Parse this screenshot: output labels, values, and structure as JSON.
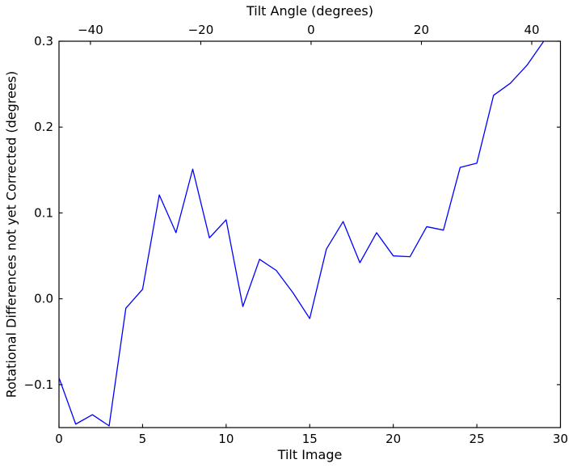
{
  "chart_data": {
    "type": "line",
    "title_top": "Tilt Angle (degrees)",
    "xlabel": "Tilt Image",
    "ylabel": "Rotational Differences not yet Corrected (degrees)",
    "x": [
      0,
      1,
      2,
      3,
      4,
      5,
      6,
      7,
      8,
      9,
      10,
      11,
      12,
      13,
      14,
      15,
      16,
      17,
      18,
      19,
      20,
      21,
      22,
      23,
      24,
      25,
      26,
      27,
      28,
      29
    ],
    "y": [
      -0.092,
      -0.146,
      -0.135,
      -0.148,
      -0.011,
      0.011,
      0.121,
      0.077,
      0.151,
      0.071,
      0.092,
      -0.009,
      0.046,
      0.033,
      0.007,
      -0.023,
      0.058,
      0.09,
      0.042,
      0.077,
      0.05,
      0.049,
      0.084,
      0.08,
      0.153,
      0.158,
      0.237,
      0.251,
      0.272,
      0.3
    ],
    "xlim": [
      0,
      30
    ],
    "ylim": [
      -0.15,
      0.3
    ],
    "x_ticks": [
      0,
      5,
      10,
      15,
      20,
      25,
      30
    ],
    "y_ticks": [
      -0.1,
      0.0,
      0.1,
      0.2,
      0.3
    ],
    "top_axis": {
      "label": "Tilt Angle (degrees)",
      "range": [
        -45.7,
        45.2
      ],
      "ticks": [
        -40,
        -20,
        0,
        20,
        40
      ]
    },
    "grid": false,
    "legend": null,
    "line_color": "#0000ff",
    "axis_color": "#000000",
    "background": "#ffffff"
  }
}
